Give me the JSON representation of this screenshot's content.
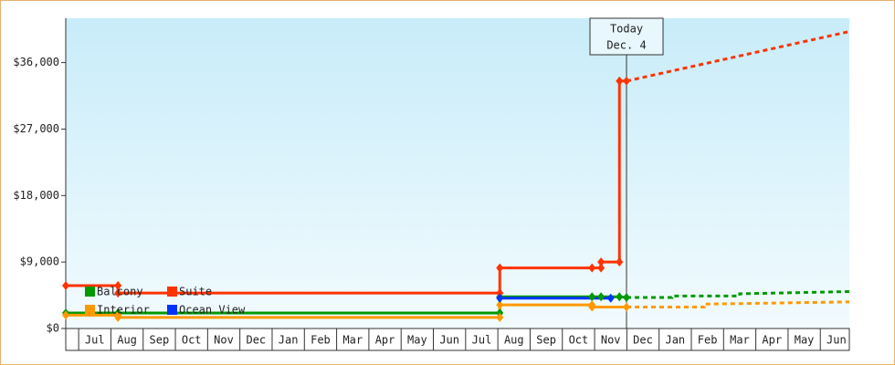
{
  "chart_data": {
    "type": "step-line",
    "categories": [
      "Jul",
      "Aug",
      "Sep",
      "Oct",
      "Nov",
      "Dec",
      "Jan",
      "Feb",
      "Mar",
      "Apr",
      "May",
      "Jun",
      "Jul",
      "Aug",
      "Sep",
      "Oct",
      "Nov",
      "Dec",
      "Jan",
      "Feb",
      "Mar",
      "Apr",
      "May",
      "Jun"
    ],
    "xlim": [
      -0.4,
      23.9
    ],
    "ylim": [
      0,
      42000
    ],
    "yticks": [
      {
        "value": 0,
        "label": "$0"
      },
      {
        "value": 9000,
        "label": "$9,000"
      },
      {
        "value": 18000,
        "label": "$18,000"
      },
      {
        "value": 27000,
        "label": "$27,000"
      },
      {
        "value": 36000,
        "label": "$36,000"
      }
    ],
    "today_x": 16.99,
    "today_label": "Today",
    "today_date": "Dec. 4",
    "series": [
      {
        "name": "Balcony",
        "color": "#009900",
        "x": [
          -0.4,
          1.22,
          13.06,
          13.06,
          15.92,
          16.2,
          16.77,
          16.99
        ],
        "values": [
          2100,
          2100,
          2100,
          4300,
          4300,
          4300,
          4300,
          4200
        ],
        "forecast_x": [
          16.99,
          18.4,
          18.4,
          20.5,
          20.5,
          23.9
        ],
        "forecast_values": [
          4200,
          4200,
          4400,
          4400,
          4700,
          5000
        ]
      },
      {
        "name": "Suite",
        "color": "#ff3300",
        "x": [
          -0.4,
          1.22,
          1.22,
          13.06,
          13.06,
          15.92,
          16.2,
          16.2,
          16.77,
          16.77,
          16.99
        ],
        "values": [
          5800,
          5800,
          4800,
          4800,
          8200,
          8200,
          8200,
          9000,
          9000,
          33500,
          33500
        ],
        "forecast_x": [
          16.99,
          23.9
        ],
        "forecast_values": [
          33500,
          40200
        ]
      },
      {
        "name": "Interior",
        "color": "#ff9900",
        "x": [
          -0.4,
          1.22,
          1.22,
          13.06,
          13.06,
          15.92,
          15.92,
          16.99
        ],
        "values": [
          1800,
          1800,
          1500,
          1500,
          3200,
          3200,
          2900,
          2900
        ],
        "forecast_x": [
          16.99,
          19.4,
          19.4,
          23.9
        ],
        "forecast_values": [
          2900,
          2900,
          3300,
          3600
        ]
      },
      {
        "name": "Ocean View",
        "color": "#0033ff",
        "x": [
          13.06,
          16.5
        ],
        "values": [
          4100,
          4100
        ]
      }
    ]
  }
}
